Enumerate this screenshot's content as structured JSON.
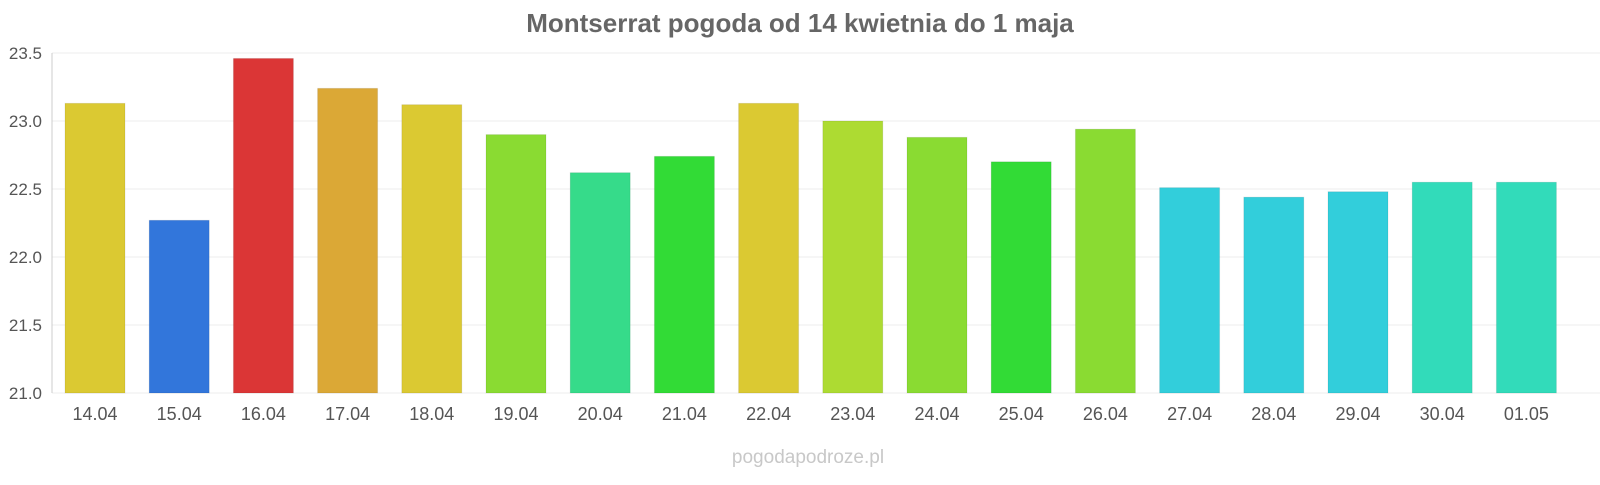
{
  "chart_data": {
    "type": "bar",
    "title": "Montserrat pogoda od 14 kwietnia do 1 maja",
    "xlabel": "",
    "ylabel": "",
    "ylim": [
      21.0,
      23.5
    ],
    "yticks": [
      "21.0",
      "21.5",
      "22.0",
      "22.5",
      "23.0",
      "23.5"
    ],
    "grid": true,
    "legend": "none",
    "categories": [
      "14.04",
      "15.04",
      "16.04",
      "17.04",
      "18.04",
      "19.04",
      "20.04",
      "21.04",
      "22.04",
      "23.04",
      "24.04",
      "25.04",
      "26.04",
      "27.04",
      "28.04",
      "29.04",
      "30.04",
      "01.05"
    ],
    "values": [
      23.13,
      22.27,
      23.46,
      23.24,
      23.12,
      22.9,
      22.62,
      22.74,
      23.13,
      23.0,
      22.88,
      22.7,
      22.94,
      22.51,
      22.44,
      22.48,
      22.55,
      22.55
    ],
    "colors": [
      "#dbc932",
      "#3276db",
      "#db3636",
      "#dba836",
      "#dbc932",
      "#8adb32",
      "#36db8a",
      "#32db36",
      "#dbc932",
      "#addb32",
      "#8adb32",
      "#32db36",
      "#8adb32",
      "#32cedb",
      "#32cedb",
      "#32cedb",
      "#32dbba",
      "#32dbba"
    ]
  },
  "watermark": "pogodapodroze.pl"
}
